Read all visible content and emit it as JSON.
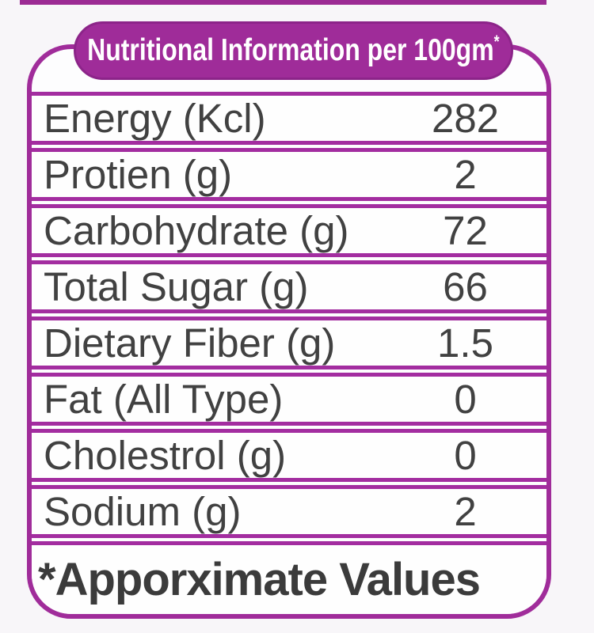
{
  "header": {
    "title": "Nutritional Information per 100gm",
    "footnote_marker": "*"
  },
  "rows": [
    {
      "label": "Energy (Kcl)",
      "value": "282"
    },
    {
      "label": "Protien (g)",
      "value": "2"
    },
    {
      "label": "Carbohydrate (g)",
      "value": "72"
    },
    {
      "label": "Total Sugar (g)",
      "value": "66"
    },
    {
      "label": "Dietary Fiber (g)",
      "value": "1.5"
    },
    {
      "label": "Fat (All Type)",
      "value": "0"
    },
    {
      "label": "Cholestrol (g)",
      "value": "0"
    },
    {
      "label": "Sodium (g)",
      "value": "2"
    }
  ],
  "footer": {
    "note": "*Apporximate Values"
  },
  "colors": {
    "accent": "#a02c9a",
    "pill_background": "#9f2c99",
    "pill_border": "#8c2489",
    "text": "#414141",
    "header_text": "#ffffff",
    "background": "#f8f6f9"
  }
}
